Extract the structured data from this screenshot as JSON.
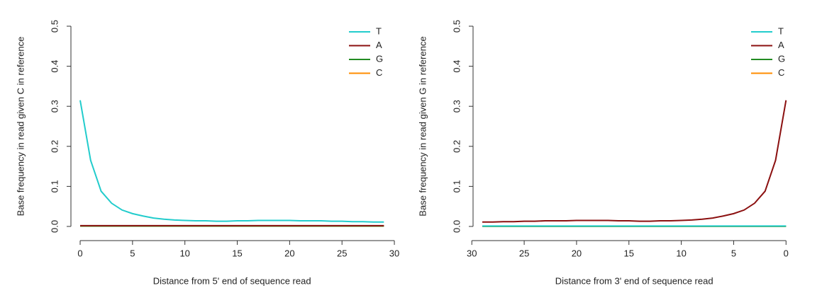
{
  "chart_data": [
    {
      "type": "line",
      "x_label": "Distance from 5' end of sequence read",
      "y_label": "Base frequency in read given C in reference",
      "x": [
        0,
        1,
        2,
        3,
        4,
        5,
        6,
        7,
        8,
        9,
        10,
        11,
        12,
        13,
        14,
        15,
        16,
        17,
        18,
        19,
        20,
        21,
        22,
        23,
        24,
        25,
        26,
        27,
        28,
        29
      ],
      "xlim": [
        -1.2,
        30.2
      ],
      "xticks": [
        0,
        5,
        10,
        15,
        20,
        25,
        30
      ],
      "ylim": [
        -0.02,
        0.52
      ],
      "yticks": [
        {
          "value": 0,
          "label": "0.0"
        },
        0.1,
        0.2,
        0.3,
        0.4,
        0.5
      ],
      "legend": "top-right",
      "series": [
        {
          "name": "T",
          "color": "#22cccc",
          "values": [
            0.315,
            0.165,
            0.088,
            0.058,
            0.041,
            0.032,
            0.026,
            0.021,
            0.018,
            0.016,
            0.015,
            0.014,
            0.014,
            0.013,
            0.013,
            0.014,
            0.014,
            0.015,
            0.015,
            0.015,
            0.015,
            0.014,
            0.014,
            0.014,
            0.013,
            0.013,
            0.012,
            0.012,
            0.011,
            0.011
          ]
        },
        {
          "name": "A",
          "color": "#8b1010",
          "values": [
            0.002,
            0.002,
            0.002,
            0.002,
            0.002,
            0.002,
            0.002,
            0.002,
            0.002,
            0.002,
            0.002,
            0.002,
            0.002,
            0.002,
            0.002,
            0.002,
            0.002,
            0.002,
            0.002,
            0.002,
            0.002,
            0.002,
            0.002,
            0.002,
            0.002,
            0.002,
            0.002,
            0.002,
            0.002,
            0.002
          ]
        },
        {
          "name": "G",
          "color": "#228b22",
          "values": [
            0.001,
            0.001,
            0.001,
            0.001,
            0.001,
            0.001,
            0.001,
            0.001,
            0.001,
            0.001,
            0.001,
            0.001,
            0.001,
            0.001,
            0.001,
            0.001,
            0.001,
            0.001,
            0.001,
            0.001,
            0.001,
            0.001,
            0.001,
            0.001,
            0.001,
            0.001,
            0.001,
            0.001,
            0.001,
            0.001
          ]
        },
        {
          "name": "C",
          "color": "#ff8c00",
          "values": [
            0.001,
            0.001,
            0.001,
            0.001,
            0.001,
            0.001,
            0.001,
            0.001,
            0.001,
            0.001,
            0.001,
            0.001,
            0.001,
            0.001,
            0.001,
            0.001,
            0.001,
            0.001,
            0.001,
            0.001,
            0.001,
            0.001,
            0.001,
            0.001,
            0.001,
            0.001,
            0.001,
            0.001,
            0.001,
            0.001
          ]
        }
      ]
    },
    {
      "type": "line",
      "x_label": "Distance from 3' end of sequence read",
      "y_label": "Base frequency in read given G in reference",
      "x": [
        0,
        1,
        2,
        3,
        4,
        5,
        6,
        7,
        8,
        9,
        10,
        11,
        12,
        13,
        14,
        15,
        16,
        17,
        18,
        19,
        20,
        21,
        22,
        23,
        24,
        25,
        26,
        27,
        28,
        29
      ],
      "xlim": [
        30.2,
        -1.2
      ],
      "xticks": [
        30,
        25,
        20,
        15,
        10,
        5,
        0
      ],
      "ylim": [
        -0.02,
        0.52
      ],
      "yticks": [
        {
          "value": 0,
          "label": "0.0"
        },
        0.1,
        0.2,
        0.3,
        0.4,
        0.5
      ],
      "legend": "top-right",
      "series": [
        {
          "name": "T",
          "color": "#22cccc",
          "values": [
            0.001,
            0.001,
            0.001,
            0.001,
            0.001,
            0.001,
            0.001,
            0.001,
            0.001,
            0.001,
            0.001,
            0.001,
            0.001,
            0.001,
            0.001,
            0.001,
            0.001,
            0.001,
            0.001,
            0.001,
            0.001,
            0.001,
            0.001,
            0.001,
            0.001,
            0.001,
            0.001,
            0.001,
            0.001,
            0.001
          ]
        },
        {
          "name": "A",
          "color": "#8b1010",
          "values": [
            0.315,
            0.165,
            0.088,
            0.058,
            0.041,
            0.032,
            0.026,
            0.021,
            0.018,
            0.016,
            0.015,
            0.014,
            0.014,
            0.013,
            0.013,
            0.014,
            0.014,
            0.015,
            0.015,
            0.015,
            0.015,
            0.014,
            0.014,
            0.014,
            0.013,
            0.013,
            0.012,
            0.012,
            0.011,
            0.011
          ]
        },
        {
          "name": "G",
          "color": "#228b22",
          "values": [
            0.0005,
            0.0005,
            0.0005,
            0.0005,
            0.0005,
            0.0005,
            0.0005,
            0.0005,
            0.0005,
            0.0005,
            0.0005,
            0.0005,
            0.0005,
            0.0005,
            0.0005,
            0.0005,
            0.0005,
            0.0005,
            0.0005,
            0.0005,
            0.0005,
            0.0005,
            0.0005,
            0.0005,
            0.0005,
            0.0005,
            0.0005,
            0.0005,
            0.0005,
            0.0005
          ]
        },
        {
          "name": "C",
          "color": "#ff8c00",
          "values": [
            0.0005,
            0.0005,
            0.0005,
            0.0005,
            0.0005,
            0.0005,
            0.0005,
            0.0005,
            0.0005,
            0.0005,
            0.0005,
            0.0005,
            0.0005,
            0.0005,
            0.0005,
            0.0005,
            0.0005,
            0.0005,
            0.0005,
            0.0005,
            0.0005,
            0.0005,
            0.0005,
            0.0005,
            0.0005,
            0.0005,
            0.0005,
            0.0005,
            0.0005,
            0.0005
          ]
        }
      ]
    }
  ]
}
